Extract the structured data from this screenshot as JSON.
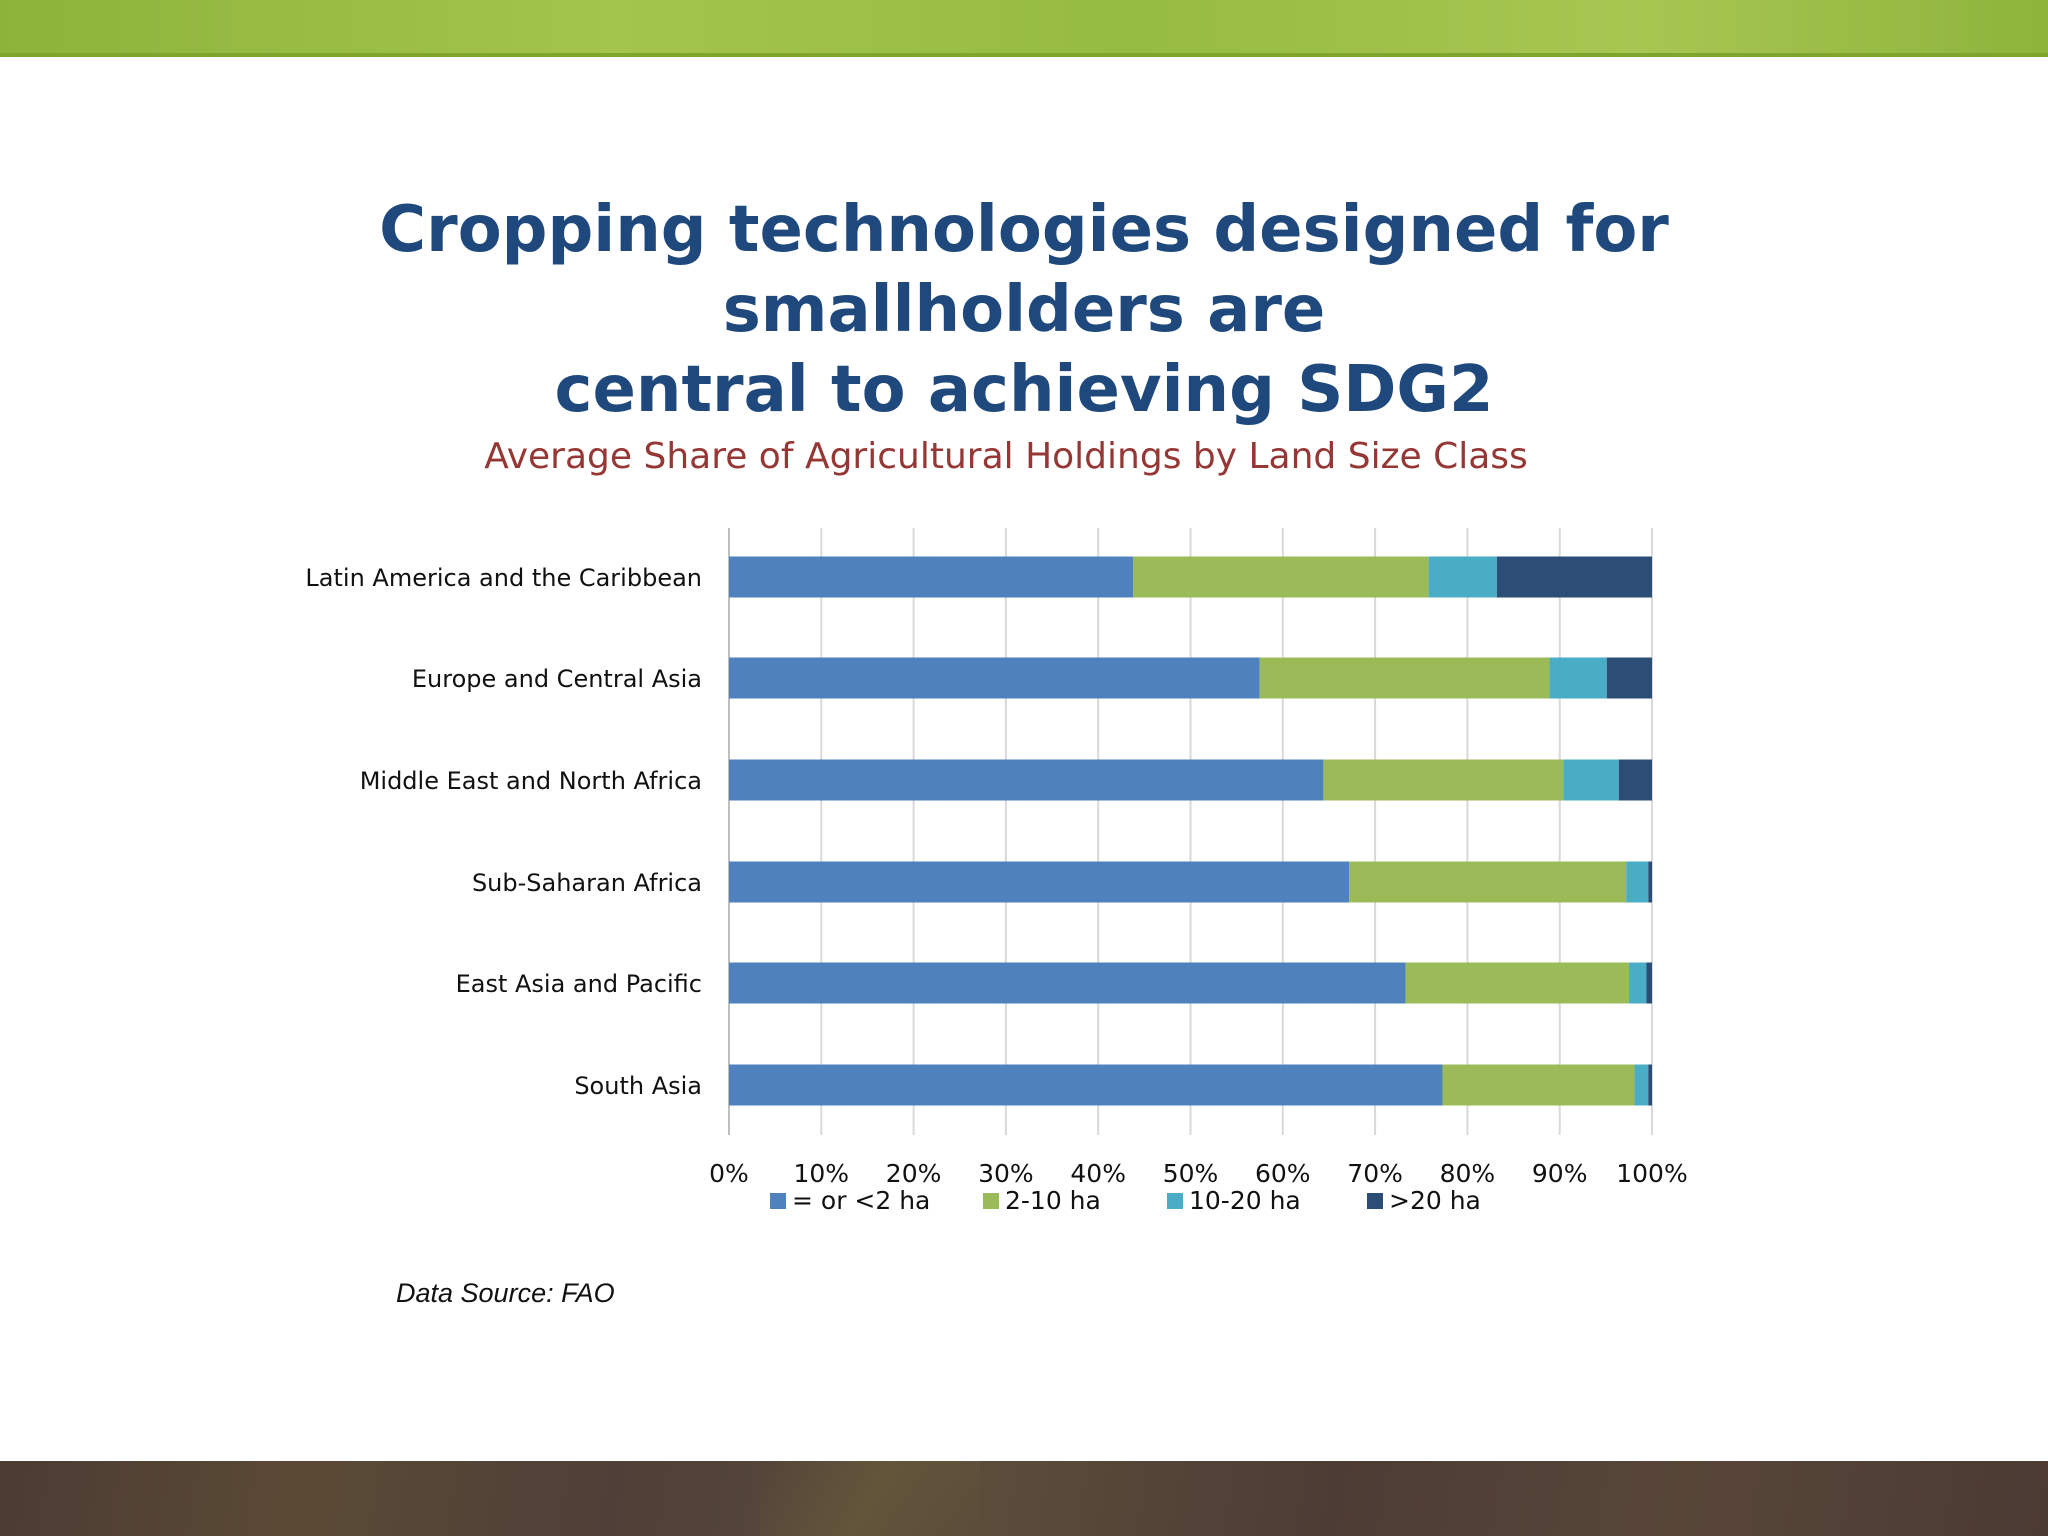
{
  "slide": {
    "title_line1": "Cropping technologies designed for smallholders are",
    "title_line2": "central to achieving SDG2",
    "source": "Data Source: FAO"
  },
  "chart_data": {
    "type": "bar",
    "orientation": "horizontal",
    "stacked": true,
    "title": "Average Share of Agricultural Holdings by Land Size Class",
    "categories": [
      "Latin America and the Caribbean",
      "Europe and Central Asia",
      "Middle East and North Africa",
      "Sub-Saharan Africa",
      "East Asia and Pacific",
      "South Asia"
    ],
    "series": [
      {
        "name": "= or <2 ha",
        "color": "#4f81bd",
        "values": [
          43.8,
          57.5,
          64.4,
          67.2,
          73.3,
          77.3
        ]
      },
      {
        "name": "2-10 ha",
        "color": "#9bbb59",
        "values": [
          32.0,
          31.4,
          26.0,
          30.0,
          24.2,
          20.8
        ]
      },
      {
        "name": "10-20 ha",
        "color": "#4bacc6",
        "values": [
          7.4,
          6.2,
          6.0,
          2.4,
          1.9,
          1.5
        ]
      },
      {
        "name": ">20 ha",
        "color": "#2c4d75",
        "values": [
          16.8,
          4.9,
          3.6,
          0.4,
          0.6,
          0.4
        ]
      }
    ],
    "xlim": [
      0,
      100
    ],
    "xticks": [
      "0%",
      "10%",
      "20%",
      "30%",
      "40%",
      "50%",
      "60%",
      "70%",
      "80%",
      "90%",
      "100%"
    ],
    "grid": true,
    "legend_position": "bottom"
  }
}
